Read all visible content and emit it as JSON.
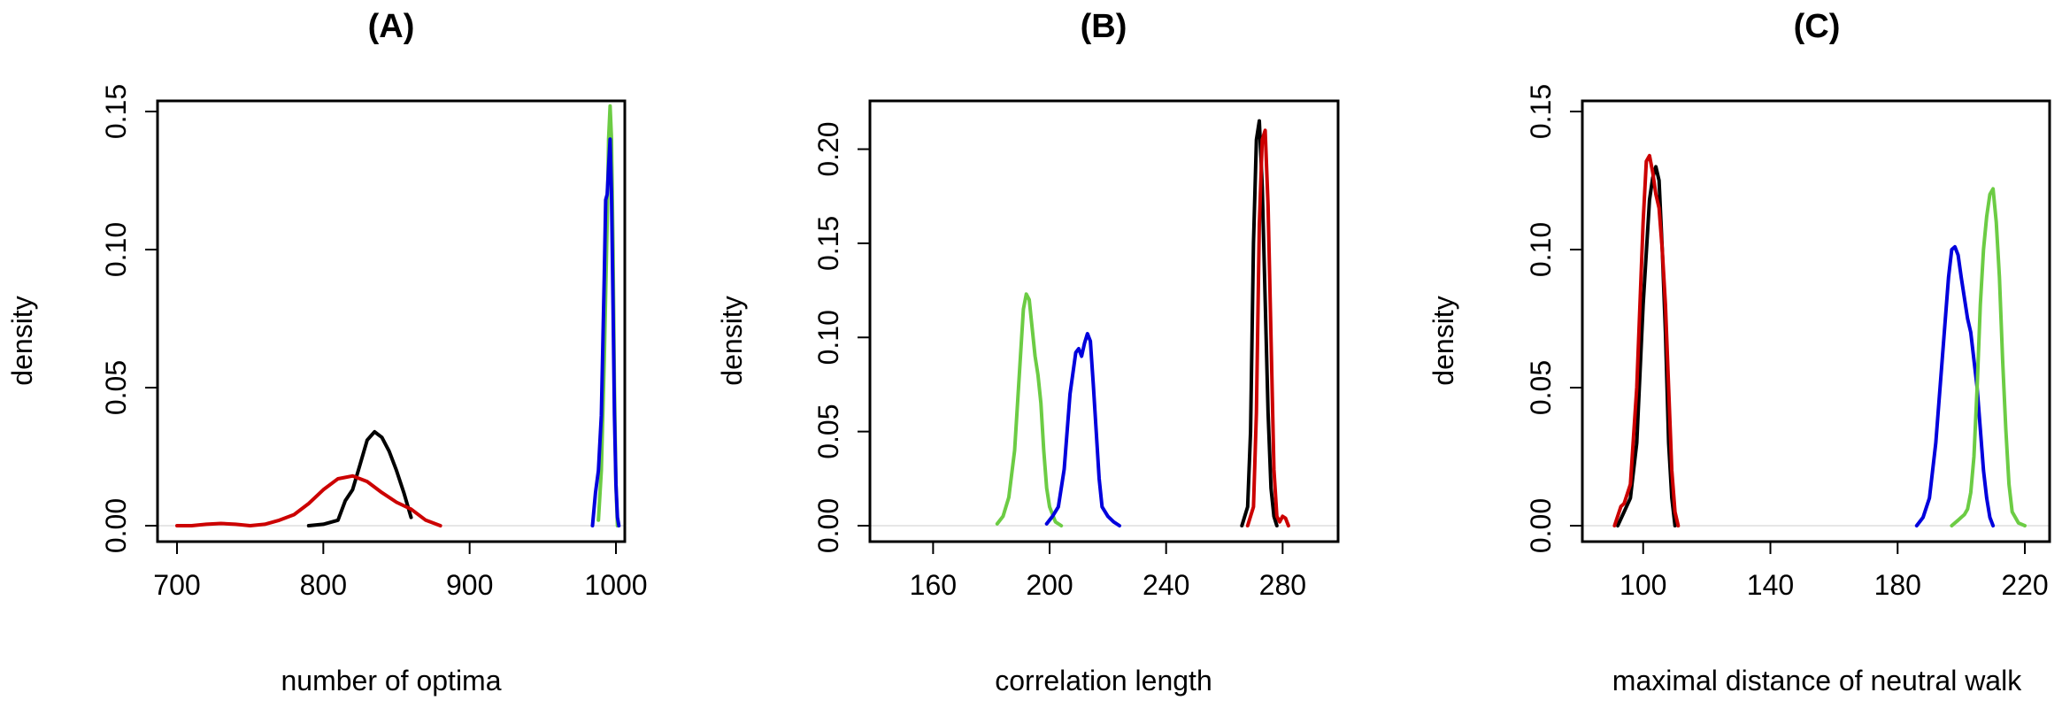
{
  "chart_data": [
    {
      "type": "line",
      "title": "(A)",
      "xlabel": "number of optima",
      "ylabel": "density",
      "xlim": [
        700,
        1000
      ],
      "ylim": [
        0,
        0.15
      ],
      "xticks": [
        700,
        800,
        900,
        1000
      ],
      "yticks": [
        0.0,
        0.05,
        0.1,
        0.15
      ],
      "xtick_labels": [
        "700",
        "800",
        "900",
        "1000"
      ],
      "ytick_labels": [
        "0.00",
        "0.05",
        "0.10",
        "0.15"
      ],
      "grid": false,
      "series": [
        {
          "color": "#000000",
          "x": [
            790,
            800,
            810,
            815,
            820,
            825,
            830,
            835,
            840,
            845,
            850,
            855,
            860
          ],
          "y": [
            0,
            0.0005,
            0.002,
            0.009,
            0.013,
            0.022,
            0.031,
            0.034,
            0.032,
            0.027,
            0.02,
            0.012,
            0.003
          ]
        },
        {
          "color": "#cc0000",
          "x": [
            700,
            710,
            720,
            730,
            740,
            750,
            760,
            770,
            780,
            790,
            800,
            810,
            820,
            830,
            840,
            850,
            860,
            870,
            880
          ],
          "y": [
            0,
            0,
            0.0005,
            0.0008,
            0.0005,
            0,
            0.0005,
            0.002,
            0.004,
            0.008,
            0.013,
            0.017,
            0.018,
            0.016,
            0.012,
            0.0085,
            0.006,
            0.002,
            0
          ]
        },
        {
          "color": "#6ccc44",
          "x": [
            988,
            990,
            992,
            994,
            995,
            996,
            997,
            998,
            999,
            1000,
            1001
          ],
          "y": [
            0.002,
            0.02,
            0.06,
            0.11,
            0.14,
            0.152,
            0.14,
            0.1,
            0.05,
            0.015,
            0
          ]
        },
        {
          "color": "#0000dd",
          "x": [
            984,
            986,
            988,
            990,
            992,
            993,
            994,
            995,
            996,
            997,
            998,
            999,
            1000,
            1001,
            1002
          ],
          "y": [
            0,
            0.012,
            0.02,
            0.04,
            0.09,
            0.118,
            0.12,
            0.13,
            0.14,
            0.12,
            0.08,
            0.04,
            0.015,
            0.003,
            0
          ]
        }
      ]
    },
    {
      "type": "line",
      "title": "(B)",
      "xlabel": "correlation length",
      "ylabel": "density",
      "xlim": [
        145,
        296
      ],
      "ylim": [
        0,
        0.22
      ],
      "xticks": [
        160,
        200,
        240,
        280
      ],
      "yticks": [
        0.0,
        0.05,
        0.1,
        0.15,
        0.2
      ],
      "xtick_labels": [
        "160",
        "200",
        "240",
        "280"
      ],
      "ytick_labels": [
        "0.00",
        "0.05",
        "0.10",
        "0.15",
        "0.20"
      ],
      "grid": false,
      "series": [
        {
          "color": "#6ccc44",
          "x": [
            182,
            184,
            186,
            188,
            190,
            191,
            192,
            193,
            194,
            195,
            196,
            197,
            198,
            199,
            200,
            202,
            204
          ],
          "y": [
            0.001,
            0.005,
            0.015,
            0.04,
            0.09,
            0.115,
            0.123,
            0.12,
            0.105,
            0.09,
            0.08,
            0.065,
            0.04,
            0.02,
            0.01,
            0.002,
            0
          ]
        },
        {
          "color": "#0000dd",
          "x": [
            199,
            201,
            203,
            205,
            207,
            209,
            210,
            211,
            212,
            213,
            214,
            215,
            216,
            217,
            218,
            220,
            222,
            224
          ],
          "y": [
            0.001,
            0.005,
            0.01,
            0.03,
            0.07,
            0.092,
            0.094,
            0.09,
            0.097,
            0.102,
            0.098,
            0.075,
            0.05,
            0.025,
            0.01,
            0.005,
            0.002,
            0
          ]
        },
        {
          "color": "#000000",
          "x": [
            266,
            268,
            269,
            270,
            271,
            272,
            273,
            274,
            275,
            276,
            277,
            278
          ],
          "y": [
            0,
            0.01,
            0.05,
            0.15,
            0.205,
            0.215,
            0.18,
            0.12,
            0.06,
            0.02,
            0.005,
            0
          ]
        },
        {
          "color": "#cc0000",
          "x": [
            268,
            270,
            271,
            272,
            273,
            274,
            275,
            276,
            277,
            278,
            279,
            280,
            281,
            282
          ],
          "y": [
            0,
            0.01,
            0.06,
            0.16,
            0.205,
            0.21,
            0.17,
            0.1,
            0.03,
            0.005,
            0.002,
            0.005,
            0.004,
            0
          ]
        }
      ]
    },
    {
      "type": "line",
      "title": "(C)",
      "xlabel": "maximal distance of neutral walk",
      "ylabel": "density",
      "xlim": [
        87,
        225
      ],
      "ylim": [
        0,
        0.15
      ],
      "xticks": [
        100,
        140,
        180,
        220
      ],
      "yticks": [
        0.0,
        0.05,
        0.1,
        0.15
      ],
      "xtick_labels": [
        "100",
        "140",
        "180",
        "220"
      ],
      "ytick_labels": [
        "0.00",
        "0.05",
        "0.10",
        "0.15"
      ],
      "grid": false,
      "series": [
        {
          "color": "#000000",
          "x": [
            92,
            94,
            96,
            98,
            100,
            102,
            103,
            104,
            105,
            106,
            107,
            108,
            109,
            110
          ],
          "y": [
            0,
            0.005,
            0.01,
            0.03,
            0.08,
            0.118,
            0.126,
            0.13,
            0.125,
            0.1,
            0.07,
            0.03,
            0.01,
            0
          ]
        },
        {
          "color": "#cc0000",
          "x": [
            91,
            93,
            94,
            96,
            98,
            100,
            101,
            102,
            103,
            104,
            105,
            106,
            107,
            108,
            109,
            110,
            111
          ],
          "y": [
            0,
            0.007,
            0.008,
            0.015,
            0.05,
            0.11,
            0.132,
            0.134,
            0.128,
            0.12,
            0.115,
            0.1,
            0.08,
            0.05,
            0.02,
            0.005,
            0
          ]
        },
        {
          "color": "#0000dd",
          "x": [
            186,
            188,
            190,
            192,
            194,
            196,
            197,
            198,
            199,
            200,
            202,
            203,
            204,
            205,
            206,
            207,
            208,
            209,
            210
          ],
          "y": [
            0,
            0.003,
            0.01,
            0.03,
            0.06,
            0.09,
            0.1,
            0.101,
            0.098,
            0.09,
            0.075,
            0.07,
            0.06,
            0.05,
            0.035,
            0.02,
            0.01,
            0.003,
            0
          ]
        },
        {
          "color": "#6ccc44",
          "x": [
            197,
            199,
            200,
            201,
            202,
            203,
            204,
            205,
            206,
            207,
            208,
            209,
            210,
            211,
            212,
            213,
            214,
            215,
            216,
            218,
            220
          ],
          "y": [
            0,
            0.002,
            0.003,
            0.004,
            0.006,
            0.012,
            0.025,
            0.05,
            0.08,
            0.1,
            0.112,
            0.12,
            0.122,
            0.11,
            0.09,
            0.06,
            0.035,
            0.015,
            0.005,
            0.001,
            0
          ]
        }
      ]
    }
  ]
}
